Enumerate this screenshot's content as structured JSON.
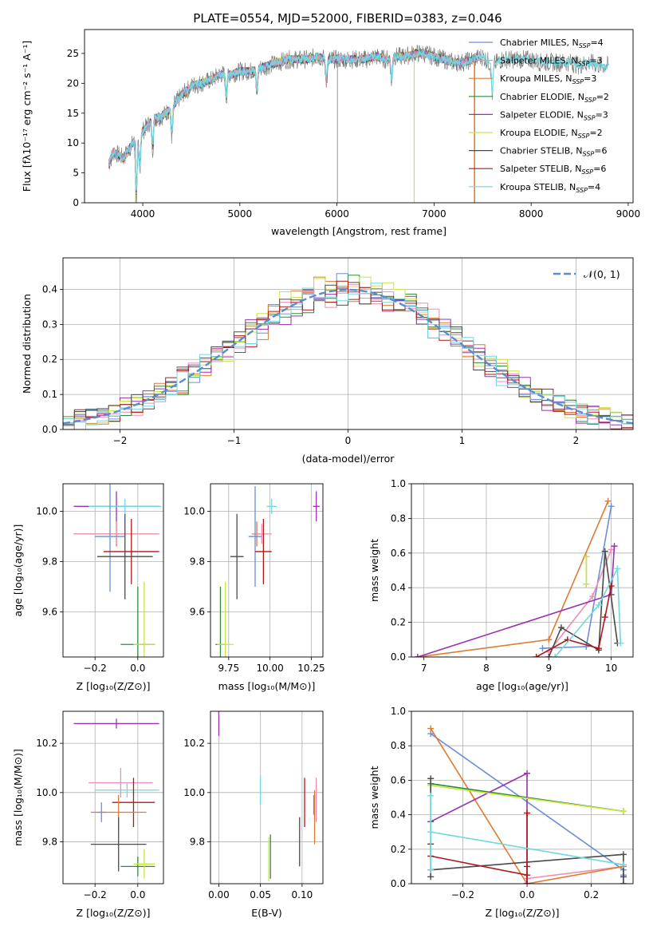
{
  "figure_title": "PLATE=0554, MJD=52000, FIBERID=0383, z=0.046",
  "colors": {
    "chabrier_miles": "#6a8ed8",
    "salpeter_miles": "#f08cb4",
    "kroupa_miles": "#e07a30",
    "chabrier_elodie": "#2e8b3a",
    "salpeter_elodie": "#9b30b0",
    "kroupa_elodie": "#c8e640",
    "chabrier_stelib": "#4a4a4a",
    "salpeter_stelib": "#b01818",
    "kroupa_stelib": "#70d8e0",
    "data_spectrum": "#808080",
    "normal_curve": "#5b8ccc"
  },
  "chart_data": [
    {
      "id": "spectrum",
      "type": "line",
      "title": "PLATE=0554, MJD=52000, FIBERID=0383, z=0.046",
      "xlabel": "wavelength [Angstrom, rest frame]",
      "ylabel": "Flux [fλ10⁻¹⁷ erg cm⁻² s⁻¹ A⁻¹]",
      "xlim": [
        3400,
        9050
      ],
      "ylim": [
        0,
        29
      ],
      "xticks": [
        4000,
        5000,
        6000,
        7000,
        8000,
        9000
      ],
      "yticks": [
        0,
        5,
        10,
        15,
        20,
        25
      ],
      "legend_position": "right",
      "legend": [
        {
          "key": "chabrier_miles",
          "label": "Chabrier MILES, N",
          "sub": "SSP",
          "val": "=4"
        },
        {
          "key": "salpeter_miles",
          "label": "Salpeter MILES, N",
          "sub": "SSP",
          "val": "=3"
        },
        {
          "key": "kroupa_miles",
          "label": "Kroupa MILES, N",
          "sub": "SSP",
          "val": "=3"
        },
        {
          "key": "chabrier_elodie",
          "label": "Chabrier ELODIE, N",
          "sub": "SSP",
          "val": "=2"
        },
        {
          "key": "salpeter_elodie",
          "label": "Salpeter ELODIE, N",
          "sub": "SSP",
          "val": "=3"
        },
        {
          "key": "kroupa_elodie",
          "label": "Kroupa ELODIE, N",
          "sub": "SSP",
          "val": "=2"
        },
        {
          "key": "chabrier_stelib",
          "label": "Chabrier STELIB, N",
          "sub": "SSP",
          "val": "=6"
        },
        {
          "key": "salpeter_stelib",
          "label": "Salpeter STELIB, N",
          "sub": "SSP",
          "val": "=6"
        },
        {
          "key": "kroupa_stelib",
          "label": "Kroupa STELIB, N",
          "sub": "SSP",
          "val": "=4"
        }
      ],
      "continuum": [
        [
          3650,
          6.5
        ],
        [
          3700,
          8.5
        ],
        [
          3800,
          7.5
        ],
        [
          3900,
          10
        ],
        [
          4000,
          12
        ],
        [
          4100,
          14
        ],
        [
          4200,
          14.5
        ],
        [
          4300,
          16
        ],
        [
          4400,
          18
        ],
        [
          4500,
          19.5
        ],
        [
          4600,
          20
        ],
        [
          4700,
          20.5
        ],
        [
          4800,
          21.5
        ],
        [
          4900,
          21.5
        ],
        [
          5000,
          22
        ],
        [
          5100,
          22
        ],
        [
          5200,
          22.5
        ],
        [
          5300,
          23
        ],
        [
          5400,
          23.5
        ],
        [
          5500,
          24
        ],
        [
          5600,
          24
        ],
        [
          5700,
          24
        ],
        [
          5800,
          24.5
        ],
        [
          5900,
          24
        ],
        [
          6000,
          24
        ],
        [
          6100,
          24
        ],
        [
          6200,
          24
        ],
        [
          6300,
          24
        ],
        [
          6400,
          24.5
        ],
        [
          6500,
          24
        ],
        [
          6600,
          24.5
        ],
        [
          6700,
          24.5
        ],
        [
          6800,
          25
        ],
        [
          6900,
          25
        ],
        [
          7000,
          24.5
        ],
        [
          7100,
          24
        ],
        [
          7200,
          23.5
        ],
        [
          7300,
          23.5
        ],
        [
          7400,
          24
        ],
        [
          7500,
          24.5
        ],
        [
          7600,
          23
        ],
        [
          7700,
          24
        ],
        [
          7800,
          24
        ],
        [
          7900,
          24
        ],
        [
          8000,
          24
        ],
        [
          8100,
          23.5
        ],
        [
          8200,
          23.5
        ],
        [
          8300,
          23.5
        ],
        [
          8400,
          23.5
        ],
        [
          8500,
          23
        ],
        [
          8600,
          23.5
        ],
        [
          8700,
          23
        ],
        [
          8800,
          23
        ]
      ],
      "dips": [
        [
          3934,
          10
        ],
        [
          3969,
          6
        ],
        [
          4102,
          5
        ],
        [
          4300,
          5
        ],
        [
          4861,
          4
        ],
        [
          5175,
          4
        ],
        [
          5890,
          4
        ],
        [
          6563,
          4
        ],
        [
          7600,
          5
        ]
      ]
    },
    {
      "id": "residuals",
      "type": "step-histogram",
      "xlabel": "(data-model)/error",
      "ylabel": "Normed distribution",
      "xlim": [
        -2.5,
        2.5
      ],
      "ylim": [
        0,
        0.49
      ],
      "xticks": [
        -2,
        -1,
        0,
        1,
        2
      ],
      "yticks": [
        0.0,
        0.1,
        0.2,
        0.3,
        0.4
      ],
      "legend_position": "top-right",
      "legend_label": "𝒩(0, 1)",
      "bin_width": 0.1
    },
    {
      "id": "age_vs_Z",
      "type": "errorbar",
      "xlabel": "Z [log₁₀(Z/Z⊙)]",
      "ylabel": "age  [log₁₀(age/yr)]",
      "xlim": [
        -0.35,
        0.12
      ],
      "ylim": [
        9.42,
        10.11
      ],
      "xticks": [
        -0.2,
        0.0
      ],
      "yticks": [
        9.6,
        9.8,
        10.0
      ],
      "points": [
        {
          "key": "salpeter_elodie",
          "x": -0.1,
          "y": 10.02,
          "xerr": 0.2,
          "yerr": 0.06
        },
        {
          "key": "kroupa_stelib",
          "x": -0.06,
          "y": 10.02,
          "xerr": 0.17,
          "yerr": 0.03
        },
        {
          "key": "kroupa_miles",
          "x": -0.1,
          "y": 9.91,
          "xerr": 0.2,
          "yerr": 0.05
        },
        {
          "key": "salpeter_miles",
          "x": -0.1,
          "y": 9.91,
          "xerr": 0.2,
          "yerr": 0.04
        },
        {
          "key": "chabrier_miles",
          "x": -0.13,
          "y": 9.9,
          "xerr": 0.07,
          "yerr": 0.22
        },
        {
          "key": "salpeter_stelib",
          "x": -0.03,
          "y": 9.84,
          "xerr": 0.13,
          "yerr": 0.13
        },
        {
          "key": "chabrier_stelib",
          "x": -0.06,
          "y": 9.82,
          "xerr": 0.13,
          "yerr": 0.17
        },
        {
          "key": "chabrier_elodie",
          "x": 0.0,
          "y": 9.47,
          "xerr": 0.08,
          "yerr": 0.23
        },
        {
          "key": "kroupa_elodie",
          "x": 0.03,
          "y": 9.47,
          "xerr": 0.05,
          "yerr": 0.25
        }
      ]
    },
    {
      "id": "age_vs_mass",
      "type": "errorbar",
      "xlabel": "mass [log₁₀(M/M⊙)]",
      "ylabel": "",
      "xlim": [
        9.64,
        10.32
      ],
      "ylim": [
        9.42,
        10.11
      ],
      "xticks": [
        9.75,
        10.0,
        10.25
      ],
      "yticks": [
        9.6,
        9.8,
        10.0
      ],
      "points": [
        {
          "key": "salpeter_elodie",
          "x": 10.28,
          "y": 10.02,
          "xerr": 0.02,
          "yerr": 0.06
        },
        {
          "key": "kroupa_stelib",
          "x": 10.01,
          "y": 10.02,
          "xerr": 0.03,
          "yerr": 0.03
        },
        {
          "key": "kroupa_miles",
          "x": 9.92,
          "y": 9.91,
          "xerr": 0.03,
          "yerr": 0.05
        },
        {
          "key": "salpeter_miles",
          "x": 9.95,
          "y": 9.91,
          "xerr": 0.06,
          "yerr": 0.04
        },
        {
          "key": "chabrier_miles",
          "x": 9.91,
          "y": 9.9,
          "xerr": 0.04,
          "yerr": 0.2
        },
        {
          "key": "salpeter_stelib",
          "x": 9.96,
          "y": 9.84,
          "xerr": 0.05,
          "yerr": 0.13
        },
        {
          "key": "chabrier_stelib",
          "x": 9.8,
          "y": 9.82,
          "xerr": 0.04,
          "yerr": 0.17
        },
        {
          "key": "chabrier_elodie",
          "x": 9.7,
          "y": 9.47,
          "xerr": 0.03,
          "yerr": 0.23
        },
        {
          "key": "kroupa_elodie",
          "x": 9.73,
          "y": 9.47,
          "xerr": 0.05,
          "yerr": 0.25
        }
      ]
    },
    {
      "id": "mass_weight_vs_age",
      "type": "line",
      "xlabel": "age  [log₁₀(age/yr)]",
      "ylabel": "mass weight",
      "xlim": [
        6.8,
        10.35
      ],
      "ylim": [
        0,
        1.0
      ],
      "xticks": [
        7,
        8,
        9,
        10
      ],
      "yticks": [
        0.0,
        0.2,
        0.4,
        0.6,
        0.8,
        1.0
      ],
      "series": [
        {
          "key": "chabrier_miles",
          "x": [
            8.9,
            9.6,
            10.0
          ],
          "y": [
            0.05,
            0.06,
            0.87
          ]
        },
        {
          "key": "salpeter_miles",
          "x": [
            9.0,
            9.7,
            10.0
          ],
          "y": [
            0.03,
            0.35,
            0.62
          ]
        },
        {
          "key": "kroupa_miles",
          "x": [
            6.9,
            9.0,
            9.95
          ],
          "y": [
            0.0,
            0.1,
            0.9
          ]
        },
        {
          "key": "chabrier_elodie",
          "x": [
            9.6,
            9.6
          ],
          "y": [
            0.42,
            0.58
          ]
        },
        {
          "key": "salpeter_elodie",
          "x": [
            6.9,
            10.0,
            10.05
          ],
          "y": [
            0.0,
            0.36,
            0.64
          ]
        },
        {
          "key": "kroupa_elodie",
          "x": [
            9.6,
            9.6
          ],
          "y": [
            0.42,
            0.58
          ]
        },
        {
          "key": "chabrier_stelib",
          "x": [
            9.0,
            9.2,
            9.8,
            9.9,
            10.1
          ],
          "y": [
            0.0,
            0.17,
            0.04,
            0.61,
            0.08
          ]
        },
        {
          "key": "salpeter_stelib",
          "x": [
            8.8,
            9.3,
            9.8,
            9.9,
            10.0
          ],
          "y": [
            0.0,
            0.1,
            0.05,
            0.23,
            0.41
          ]
        },
        {
          "key": "kroupa_stelib",
          "x": [
            9.1,
            9.8,
            10.1,
            10.15
          ],
          "y": [
            0.0,
            0.3,
            0.51,
            0.08
          ]
        }
      ]
    },
    {
      "id": "mass_vs_Z",
      "type": "errorbar",
      "xlabel": "Z [log₁₀(Z/Z⊙)]",
      "ylabel": "mass [log₁₀(M/M⊙)]",
      "xlim": [
        -0.35,
        0.12
      ],
      "ylim": [
        9.63,
        10.33
      ],
      "xticks": [
        -0.2,
        0.0
      ],
      "yticks": [
        9.8,
        10.0,
        10.2
      ],
      "points": [
        {
          "key": "salpeter_elodie",
          "x": -0.1,
          "y": 10.28,
          "xerr": 0.2,
          "yerr": 0.02
        },
        {
          "key": "salpeter_miles",
          "x": -0.08,
          "y": 10.04,
          "xerr": 0.15,
          "yerr": 0.06
        },
        {
          "key": "kroupa_stelib",
          "x": -0.05,
          "y": 10.01,
          "xerr": 0.15,
          "yerr": 0.03
        },
        {
          "key": "salpeter_stelib",
          "x": -0.02,
          "y": 9.96,
          "xerr": 0.1,
          "yerr": 0.1
        },
        {
          "key": "kroupa_miles",
          "x": -0.09,
          "y": 9.92,
          "xerr": 0.13,
          "yerr": 0.07
        },
        {
          "key": "chabrier_miles",
          "x": -0.17,
          "y": 9.92,
          "xerr": 0.02,
          "yerr": 0.04
        },
        {
          "key": "chabrier_stelib",
          "x": -0.09,
          "y": 9.79,
          "xerr": 0.13,
          "yerr": 0.11
        },
        {
          "key": "chabrier_elodie",
          "x": 0.0,
          "y": 9.7,
          "xerr": 0.08,
          "yerr": 0.04
        },
        {
          "key": "kroupa_elodie",
          "x": 0.03,
          "y": 9.71,
          "xerr": 0.05,
          "yerr": 0.06
        }
      ]
    },
    {
      "id": "mass_vs_ebv",
      "type": "errorbar",
      "xlabel": "E(B-V)",
      "ylabel": "",
      "xlim": [
        -0.01,
        0.125
      ],
      "ylim": [
        9.63,
        10.33
      ],
      "xticks": [
        0.0,
        0.05,
        0.1
      ],
      "yticks": [
        9.8,
        10.0,
        10.2
      ],
      "points": [
        {
          "key": "salpeter_elodie",
          "x": 0.0,
          "y": 10.28,
          "xerr": 0,
          "yerr": 0.05
        },
        {
          "key": "kroupa_stelib",
          "x": 0.05,
          "y": 10.01,
          "xerr": 0,
          "yerr": 0.06
        },
        {
          "key": "salpeter_stelib",
          "x": 0.103,
          "y": 9.96,
          "xerr": 0,
          "yerr": 0.1
        },
        {
          "key": "salpeter_miles",
          "x": 0.117,
          "y": 9.97,
          "xerr": 0,
          "yerr": 0.09
        },
        {
          "key": "chabrier_miles",
          "x": 0.114,
          "y": 9.95,
          "xerr": 0,
          "yerr": 0.04
        },
        {
          "key": "kroupa_miles",
          "x": 0.115,
          "y": 9.9,
          "xerr": 0,
          "yerr": 0.11
        },
        {
          "key": "chabrier_stelib",
          "x": 0.097,
          "y": 9.8,
          "xerr": 0,
          "yerr": 0.1
        },
        {
          "key": "chabrier_elodie",
          "x": 0.062,
          "y": 9.74,
          "xerr": 0,
          "yerr": 0.09
        },
        {
          "key": "kroupa_elodie",
          "x": 0.06,
          "y": 9.73,
          "xerr": 0,
          "yerr": 0.09
        }
      ]
    },
    {
      "id": "mass_weight_vs_Z",
      "type": "line",
      "xlabel": "Z [log₁₀(Z/Z⊙)]",
      "ylabel": "mass weight",
      "xlim": [
        -0.36,
        0.33
      ],
      "ylim": [
        0,
        1.0
      ],
      "xticks": [
        -0.2,
        0.0,
        0.2
      ],
      "yticks": [
        0.0,
        0.2,
        0.4,
        0.6,
        0.8,
        1.0
      ],
      "series": [
        {
          "key": "chabrier_miles",
          "x": [
            -0.3,
            0.3,
            0.3
          ],
          "y": [
            0.87,
            0.08,
            0.05
          ]
        },
        {
          "key": "salpeter_miles",
          "x": [
            0.0,
            0.3
          ],
          "y": [
            0.03,
            0.1
          ]
        },
        {
          "key": "kroupa_miles",
          "x": [
            -0.3,
            0.0,
            0.3
          ],
          "y": [
            0.9,
            0.0,
            0.1
          ]
        },
        {
          "key": "chabrier_elodie",
          "x": [
            -0.3,
            0.3
          ],
          "y": [
            0.58,
            0.42
          ]
        },
        {
          "key": "salpeter_elodie",
          "x": [
            -0.3,
            0.0,
            0.0
          ],
          "y": [
            0.36,
            0.64,
            0.0
          ]
        },
        {
          "key": "kroupa_elodie",
          "x": [
            -0.3,
            0.3
          ],
          "y": [
            0.57,
            0.42
          ]
        },
        {
          "key": "chabrier_stelib",
          "x": [
            -0.3,
            -0.3,
            -0.3,
            0.3,
            0.3,
            0.3
          ],
          "y": [
            0.04,
            0.61,
            0.08,
            0.17,
            0.0,
            0.04
          ]
        },
        {
          "key": "salpeter_stelib",
          "x": [
            -0.3,
            -0.3,
            0.0,
            0.0,
            0.0,
            0.0
          ],
          "y": [
            0.23,
            0.16,
            0.05,
            0.41,
            0.1,
            0.0
          ]
        },
        {
          "key": "kroupa_stelib",
          "x": [
            -0.3,
            -0.3,
            -0.3,
            0.3
          ],
          "y": [
            0.08,
            0.51,
            0.3,
            0.11
          ]
        }
      ]
    }
  ]
}
